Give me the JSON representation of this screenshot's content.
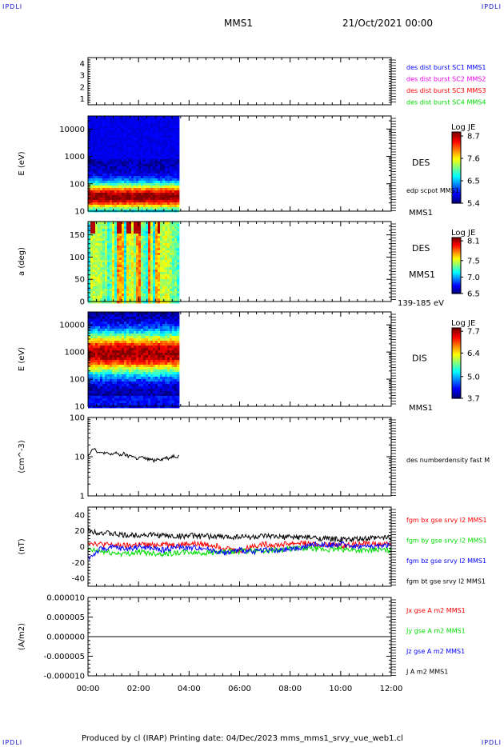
{
  "corners": {
    "tl": "IPDLI",
    "tr": "IPDLI",
    "bl": "IPDLI",
    "br": "IPDLI"
  },
  "header": {
    "spacecraft": "MMS1",
    "date": "21/Oct/2021 00:00"
  },
  "footer": "Produced by cl (IRAP)   Printing date: 04/Dec/2023   mms_mms1_srvy_vue_web1.cl",
  "colors": {
    "black": "#000000",
    "blue": "#0000ff",
    "magenta": "#ee00ee",
    "red": "#ff0000",
    "green": "#00dd00"
  },
  "chart_data": [
    {
      "id": "sc-availability",
      "type": "line",
      "ylim": [
        0.5,
        4.5
      ],
      "yticks": [
        "1",
        "2",
        "3",
        "4"
      ],
      "legend": [
        {
          "label": "des dist burst SC1 MMS1",
          "color": "#0000ff"
        },
        {
          "label": "des dist burst SC2 MMS2",
          "color": "#ee00ee"
        },
        {
          "label": "des dist burst SC3 MMS3",
          "color": "#ff0000"
        },
        {
          "label": "des dist burst SC4 MMS4",
          "color": "#00dd00"
        }
      ],
      "series": []
    },
    {
      "id": "des-energy",
      "type": "heatmap",
      "ylabel": "E (eV)",
      "yscale": "log",
      "ylim": [
        10,
        30000
      ],
      "yticks": [
        "10",
        "100",
        "1000",
        "10000"
      ],
      "data_end_hour": 3.6,
      "side_label": "DES",
      "overlay_label": "edp scpot MMS1",
      "bottom_label": "MMS1",
      "colorbar": {
        "title": "Log JE",
        "min": 5.4,
        "max": 8.9,
        "ticks": [
          "8.7",
          "7.6",
          "6.5",
          "5.4"
        ]
      }
    },
    {
      "id": "des-pitch",
      "type": "heatmap",
      "ylabel": "a (deg)",
      "ylim": [
        0,
        180
      ],
      "yticks": [
        "0",
        "50",
        "100",
        "150"
      ],
      "data_end_hour": 3.6,
      "side_label": "DES",
      "side_label2": "MMS1",
      "bottom_label": "139-185 eV",
      "colorbar": {
        "title": "Log JE",
        "min": 6.5,
        "max": 8.2,
        "ticks": [
          "8.1",
          "7.5",
          "7.0",
          "6.5"
        ]
      }
    },
    {
      "id": "dis-energy",
      "type": "heatmap",
      "ylabel": "E (eV)",
      "yscale": "log",
      "ylim": [
        10,
        30000
      ],
      "yticks": [
        "10",
        "100",
        "1000",
        "10000"
      ],
      "data_end_hour": 3.6,
      "side_label": "DIS",
      "bottom_label": "MMS1",
      "colorbar": {
        "title": "Log JE",
        "min": 3.7,
        "max": 7.9,
        "ticks": [
          "7.7",
          "6.4",
          "5.0",
          "3.7"
        ]
      }
    },
    {
      "id": "density",
      "type": "line",
      "ylabel": "(cm^-3)",
      "yscale": "log",
      "ylim": [
        1,
        100
      ],
      "yticks": [
        "1",
        "10",
        "100"
      ],
      "series": [
        {
          "name": "des numberdensity fast M",
          "color": "#000000",
          "x": [
            0.0,
            0.1,
            0.2,
            0.3,
            0.4,
            0.5,
            0.6,
            0.7,
            0.8,
            0.9,
            1.0,
            1.1,
            1.2,
            1.3,
            1.4,
            1.5,
            1.6,
            1.7,
            1.8,
            1.9,
            2.0,
            2.1,
            2.2,
            2.3,
            2.4,
            2.5,
            2.6,
            2.7,
            2.8,
            2.9,
            3.0,
            3.1,
            3.2,
            3.3,
            3.4,
            3.5,
            3.6
          ],
          "y": [
            11,
            13,
            17,
            15,
            13,
            12,
            13,
            12,
            12,
            11,
            12,
            13,
            11,
            11,
            12,
            11,
            10,
            11,
            10,
            9,
            9,
            10,
            9,
            9,
            8.5,
            8.5,
            8,
            8.5,
            9,
            8.5,
            9,
            9.5,
            9,
            10,
            10.5,
            10,
            10.5
          ]
        }
      ]
    },
    {
      "id": "magnetic-field",
      "type": "line",
      "ylabel": "(nT)",
      "ylim": [
        -50,
        50
      ],
      "yticks": [
        "-40",
        "-20",
        "0",
        "20",
        "40"
      ],
      "series": [
        {
          "name": "fgm bx gse srvy l2 MMS1",
          "color": "#ff0000",
          "x": [
            0,
            0.5,
            1,
            1.5,
            2,
            2.5,
            3,
            3.5,
            4,
            4.5,
            5,
            5.5,
            6,
            6.5,
            7,
            7.5,
            8,
            8.5,
            9,
            9.5,
            10,
            10.5,
            11,
            11.5,
            12
          ],
          "y": [
            6,
            3,
            2,
            1,
            3,
            2,
            4,
            2,
            4,
            3,
            2,
            -2,
            -6,
            1,
            3,
            2,
            4,
            5,
            2,
            3,
            1,
            3,
            4,
            3,
            4
          ]
        },
        {
          "name": "fgm by gse srvy l2 MMS1",
          "color": "#00dd00",
          "x": [
            0,
            0.5,
            1,
            1.5,
            2,
            2.5,
            3,
            3.5,
            4,
            4.5,
            5,
            5.5,
            6,
            6.5,
            7,
            7.5,
            8,
            8.5,
            9,
            9.5,
            10,
            10.5,
            11,
            11.5,
            12
          ],
          "y": [
            -4,
            -6,
            -8,
            -9,
            -7,
            -8,
            -9,
            -8,
            -7,
            -8,
            -7,
            -7,
            -6,
            -5,
            -5,
            -4,
            -3,
            -2,
            -3,
            -4,
            -3,
            -4,
            -5,
            -4,
            -5
          ]
        },
        {
          "name": "fgm bz gse srvy l2 MMS1",
          "color": "#0000ff",
          "x": [
            0,
            0.5,
            1,
            1.5,
            2,
            2.5,
            3,
            3.5,
            4,
            4.5,
            5,
            5.5,
            6,
            6.5,
            7,
            7.5,
            8,
            8.5,
            9,
            9.5,
            10,
            10.5,
            11,
            11.5,
            12
          ],
          "y": [
            -15,
            -3,
            -1,
            -3,
            0,
            -2,
            -4,
            0,
            -2,
            -1,
            -5,
            -8,
            -4,
            -7,
            -3,
            -6,
            -3,
            -1,
            3,
            2,
            3,
            1,
            0,
            1,
            2
          ]
        },
        {
          "name": "fgm bt gse srvy l2 MMS1",
          "color": "#000000",
          "x": [
            0,
            0.5,
            1,
            1.5,
            2,
            2.5,
            3,
            3.5,
            4,
            4.5,
            5,
            5.5,
            6,
            6.5,
            7,
            7.5,
            8,
            8.5,
            9,
            9.5,
            10,
            10.5,
            11,
            11.5,
            12
          ],
          "y": [
            20,
            18,
            16,
            14,
            15,
            15,
            14,
            13,
            14,
            13,
            13,
            12,
            13,
            12,
            13,
            12,
            12,
            12,
            11,
            10,
            9,
            9,
            10,
            11,
            12
          ]
        }
      ]
    },
    {
      "id": "current-density",
      "type": "line",
      "ylabel": "(A/m2)",
      "ylim": [
        -1e-05,
        1e-05
      ],
      "yticks": [
        "-0.000010",
        "-0.000005",
        "0.000000",
        "0.000005",
        "0.000010"
      ],
      "series": [
        {
          "name": "Jx gse A m2 MMS1",
          "color": "#ff0000",
          "x": [
            0,
            12
          ],
          "y": [
            0,
            0
          ]
        },
        {
          "name": "Jy gse A m2 MMS1",
          "color": "#00dd00",
          "x": [
            0,
            12
          ],
          "y": [
            0,
            0
          ]
        },
        {
          "name": "Jz gse A m2 MMS1",
          "color": "#0000ff",
          "x": [
            0,
            12
          ],
          "y": [
            0,
            0
          ]
        },
        {
          "name": "J A m2 MMS1",
          "color": "#000000",
          "x": [
            0,
            12
          ],
          "y": [
            0,
            0
          ]
        }
      ]
    }
  ],
  "xaxis": {
    "ticks": [
      "00:00",
      "02:00",
      "04:00",
      "06:00",
      "08:00",
      "10:00",
      "12:00"
    ],
    "xlim": [
      0,
      12
    ]
  }
}
